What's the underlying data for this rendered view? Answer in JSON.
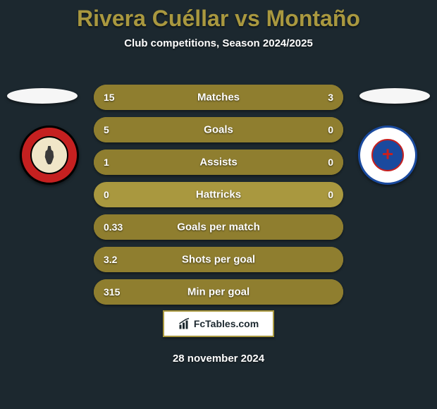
{
  "title": "Rivera Cuéllar vs Montaño",
  "subtitle": "Club competitions, Season 2024/2025",
  "date": "28 november 2024",
  "logo_text": "FcTables.com",
  "colors": {
    "bg": "#1c282f",
    "bar_base": "#a9983f",
    "bar_fill": "#8f7e2f",
    "text": "#ffffff"
  },
  "clubs": {
    "left": {
      "name": "Club Tijuana",
      "primary": "#c52020",
      "secondary": "#000000"
    },
    "right": {
      "name": "Cruz Azul",
      "primary": "#1a4a9e",
      "secondary": "#c52020"
    }
  },
  "rows": [
    {
      "label": "Matches",
      "left_val": "15",
      "right_val": "3",
      "left_pct": 83,
      "right_pct": 17
    },
    {
      "label": "Goals",
      "left_val": "5",
      "right_val": "0",
      "left_pct": 100,
      "right_pct": 0
    },
    {
      "label": "Assists",
      "left_val": "1",
      "right_val": "0",
      "left_pct": 100,
      "right_pct": 0
    },
    {
      "label": "Hattricks",
      "left_val": "0",
      "right_val": "0",
      "left_pct": 0,
      "right_pct": 0
    },
    {
      "label": "Goals per match",
      "left_val": "0.33",
      "right_val": "",
      "left_pct": 100,
      "right_pct": 0
    },
    {
      "label": "Shots per goal",
      "left_val": "3.2",
      "right_val": "",
      "left_pct": 100,
      "right_pct": 0
    },
    {
      "label": "Min per goal",
      "left_val": "315",
      "right_val": "",
      "left_pct": 100,
      "right_pct": 0
    }
  ]
}
